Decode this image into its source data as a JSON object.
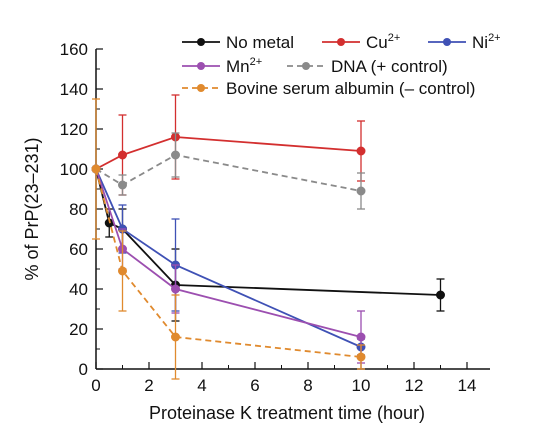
{
  "chart_data": {
    "type": "line",
    "xlabel": "Proteinase K treatment time (hour)",
    "ylabel": "% of PrP(23–231)",
    "xlim": [
      0,
      15
    ],
    "ylim": [
      0,
      160
    ],
    "xticks": [
      "0",
      "2",
      "4",
      "6",
      "8",
      "10",
      "12",
      "14"
    ],
    "yticks": [
      "0",
      "20",
      "40",
      "60",
      "80",
      "100",
      "120",
      "140",
      "160"
    ],
    "grid": false,
    "legend_position": "top-right",
    "series": [
      {
        "name": "No metal",
        "label_sup": "",
        "color": "#111111",
        "dashed": false,
        "x": [
          0,
          0.5,
          1,
          3,
          13
        ],
        "y": [
          100,
          73,
          70,
          42,
          37
        ],
        "err": [
          0,
          7,
          10,
          18,
          8
        ]
      },
      {
        "name": "Cu",
        "label_sup": "2+",
        "color": "#d32f2f",
        "dashed": false,
        "x": [
          0,
          1,
          3,
          10
        ],
        "y": [
          100,
          107,
          116,
          109
        ],
        "err": [
          0,
          20,
          21,
          15
        ]
      },
      {
        "name": "Ni",
        "label_sup": "2+",
        "color": "#3f51b5",
        "dashed": false,
        "x": [
          0,
          1,
          3,
          10
        ],
        "y": [
          100,
          70,
          52,
          11
        ],
        "err": [
          0,
          12,
          23,
          4
        ]
      },
      {
        "name": "Mn",
        "label_sup": "2+",
        "color": "#9c4fb0",
        "dashed": false,
        "x": [
          0,
          1,
          3,
          10
        ],
        "y": [
          100,
          60,
          40,
          16
        ],
        "err": [
          0,
          10,
          12,
          13
        ]
      },
      {
        "name": "DNA (+ control)",
        "label_sup": "",
        "color": "#8a8a8a",
        "dashed": true,
        "x": [
          0,
          1,
          3,
          10
        ],
        "y": [
          100,
          92,
          107,
          89
        ],
        "err": [
          0,
          5,
          11,
          9
        ]
      },
      {
        "name": "Bovine serum albumin (– control)",
        "label_sup": "",
        "color": "#e08a2e",
        "dashed": true,
        "x": [
          0,
          1,
          3,
          10
        ],
        "y": [
          100,
          49,
          16,
          6
        ],
        "err": [
          35,
          20,
          21,
          6
        ]
      }
    ]
  }
}
